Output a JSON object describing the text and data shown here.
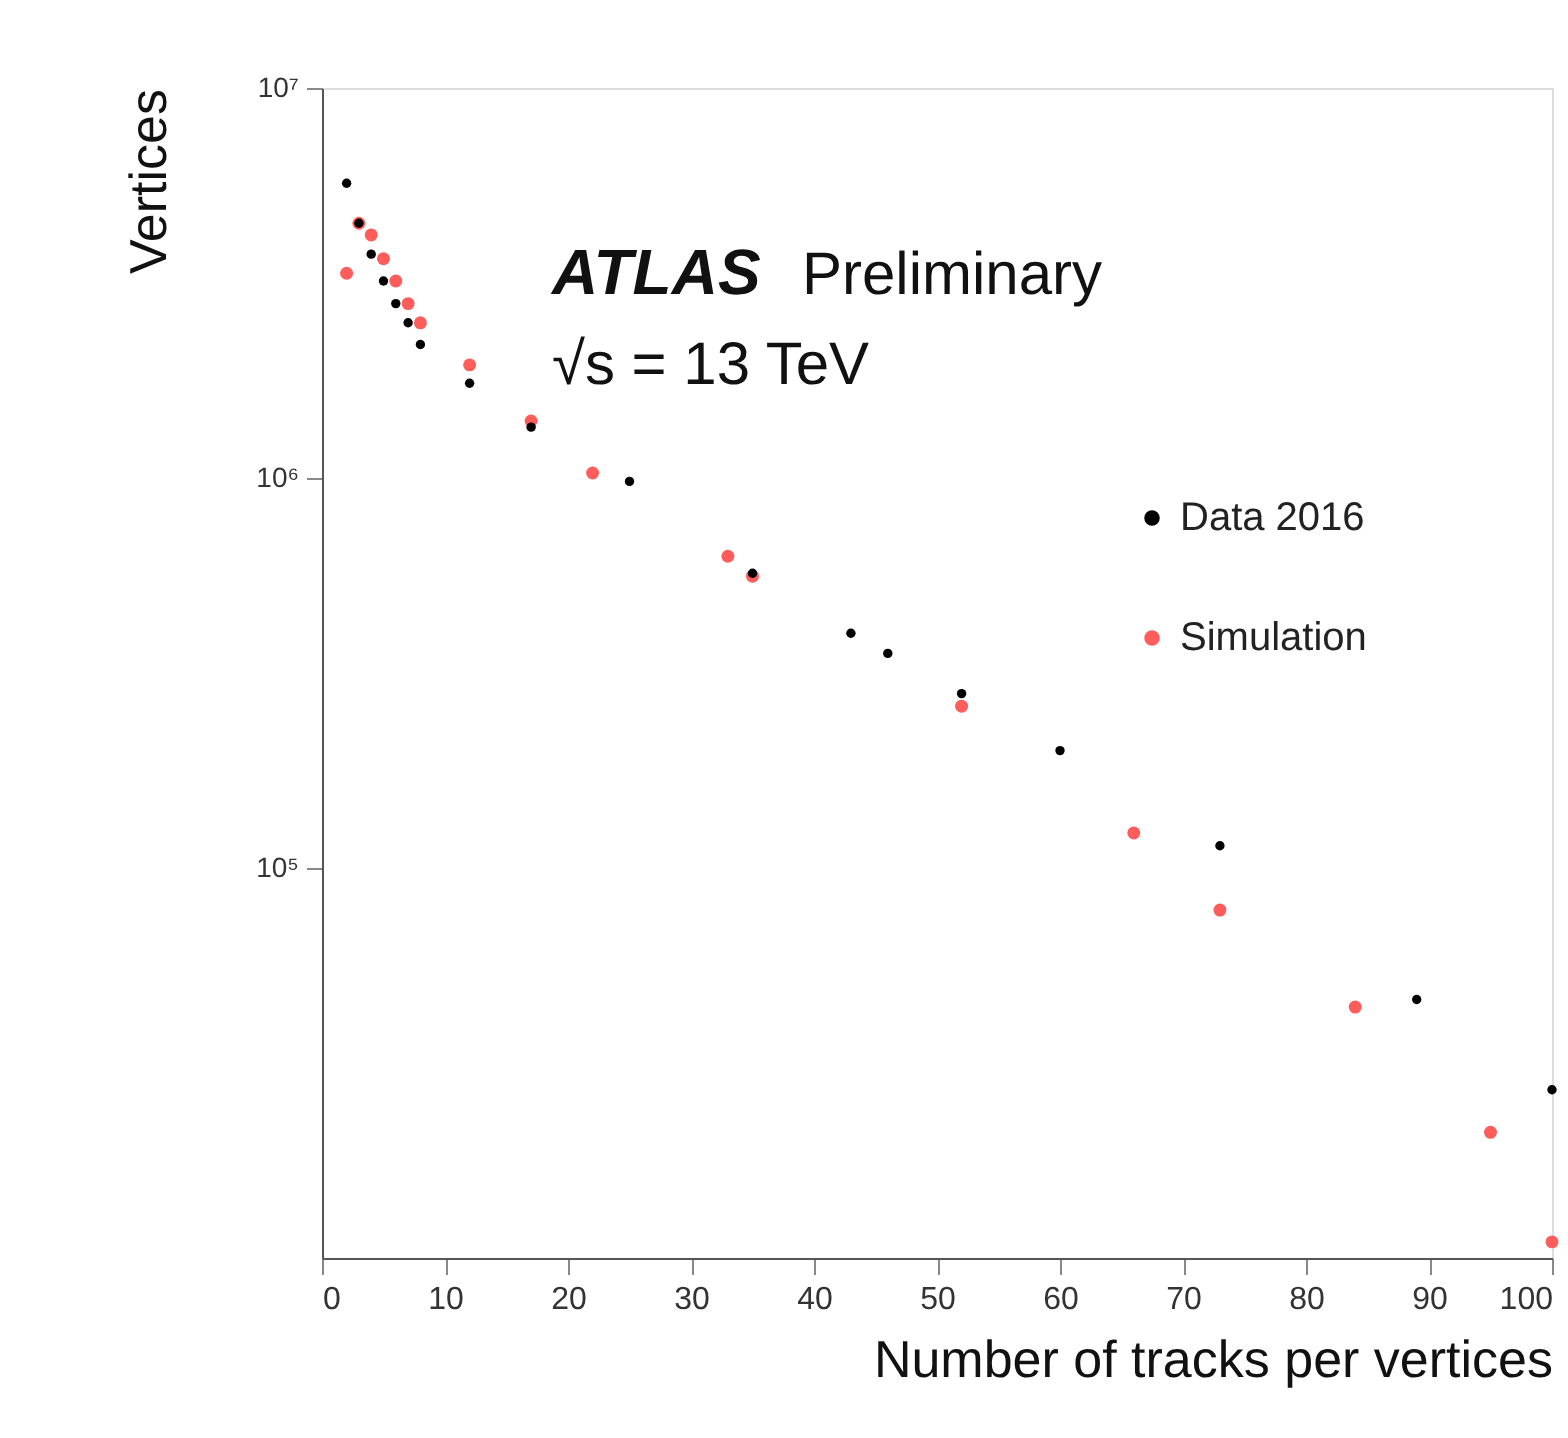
{
  "chart_data": {
    "type": "scatter",
    "xlabel": "Number of tracks per vertices",
    "ylabel": "Vertices",
    "annotations": [
      "ATLAS",
      "Preliminary",
      "√s = 13 TeV"
    ],
    "xlim": [
      0,
      100
    ],
    "xticks": [
      0,
      10,
      20,
      30,
      40,
      50,
      60,
      70,
      80,
      90,
      100
    ],
    "ylim": [
      10000,
      10000000
    ],
    "yticks": [
      {
        "value": 100000,
        "label": "10⁵"
      },
      {
        "value": 1000000,
        "label": "10⁶"
      },
      {
        "value": 10000000,
        "label": "10⁷"
      }
    ],
    "log": "y",
    "grid": false,
    "legend": "top right",
    "marker": "circle",
    "series": [
      {
        "name": "Data 2016",
        "color": "#000000",
        "x": [
          2,
          3,
          4,
          5,
          6,
          7,
          8,
          12,
          17,
          25,
          35,
          43,
          46,
          52,
          60,
          73,
          89,
          100
        ],
        "values": [
          5700000,
          4500000,
          3750000,
          3200000,
          2800000,
          2500000,
          2200000,
          1750000,
          1350000,
          980000,
          570000,
          400000,
          355000,
          280000,
          200000,
          114000,
          46000,
          27000
        ]
      },
      {
        "name": "Simulation",
        "color": "#ff5c5c",
        "x": [
          2,
          3,
          4,
          5,
          6,
          7,
          8,
          12,
          17,
          22,
          33,
          35,
          52,
          66,
          73,
          84,
          95,
          100
        ],
        "values": [
          3350000,
          4500000,
          4200000,
          3650000,
          3200000,
          2800000,
          2500000,
          1950000,
          1400000,
          1030000,
          630000,
          560000,
          260000,
          123000,
          78000,
          44000,
          21000,
          11000
        ]
      }
    ]
  }
}
